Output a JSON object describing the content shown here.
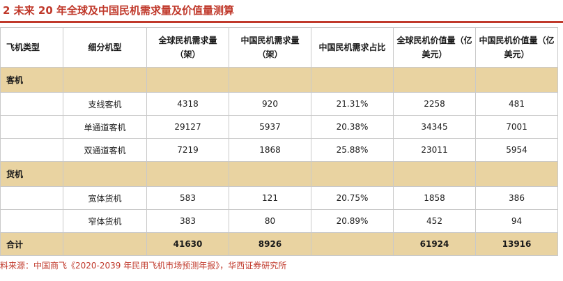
{
  "title": "2 未来 20 年全球及中国民机需求量及价值量测算",
  "headers": [
    "飞机类型",
    "细分机型",
    "全球民机需求量（架）",
    "中国民机需求量（架）",
    "中国民机需求占比",
    "全球民机价值量（亿美元）",
    "中国民机价值量（亿美元）"
  ],
  "categories": {
    "passenger": "客机",
    "cargo": "货机"
  },
  "passenger_rows": [
    [
      "支线客机",
      "4318",
      "920",
      "21.31%",
      "2258",
      "481"
    ],
    [
      "单通道客机",
      "29127",
      "5937",
      "20.38%",
      "34345",
      "7001"
    ],
    [
      "双通道客机",
      "7219",
      "1868",
      "25.88%",
      "23011",
      "5954"
    ]
  ],
  "cargo_rows": [
    [
      "宽体货机",
      "583",
      "121",
      "20.75%",
      "1858",
      "386"
    ],
    [
      "窄体货机",
      "383",
      "80",
      "20.89%",
      "452",
      "94"
    ]
  ],
  "total": {
    "label": "合计",
    "global_qty": "41630",
    "china_qty": "8926",
    "global_value": "61924",
    "china_value": "13916"
  },
  "source": "料来源：中国商飞《2020-2039 年民用飞机市场预测年报》，华西证券研究所"
}
